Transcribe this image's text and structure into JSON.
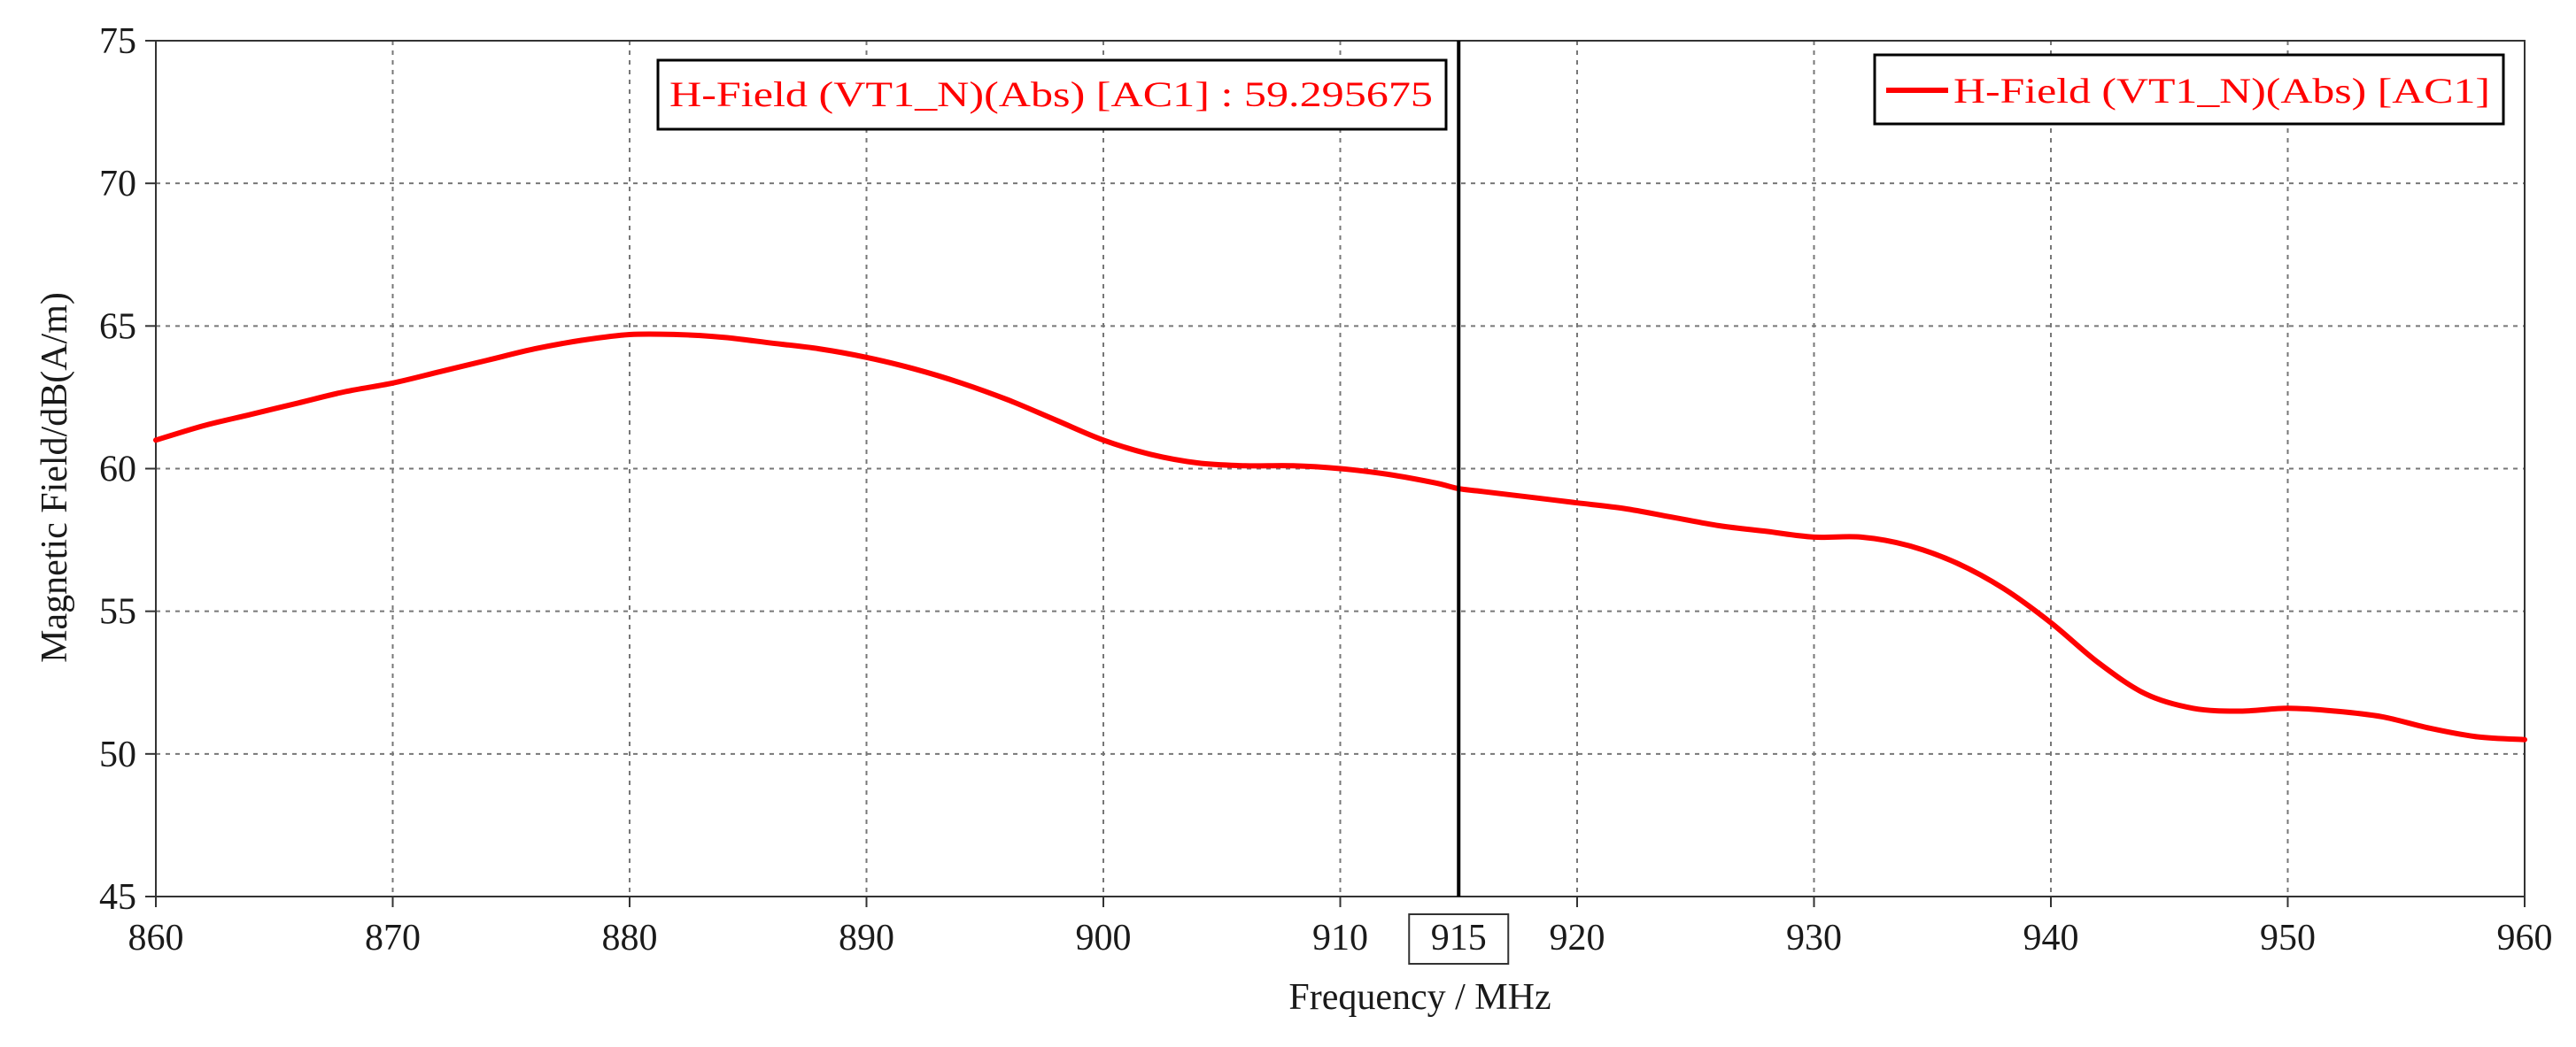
{
  "chart_data": {
    "type": "line",
    "title": "",
    "xlabel": "Frequency / MHz",
    "ylabel": "Magnetic Field/dB(A/m)",
    "xlim": [
      860,
      960
    ],
    "ylim": [
      45,
      75
    ],
    "xticks": [
      860,
      870,
      880,
      890,
      900,
      910,
      920,
      930,
      940,
      950,
      960
    ],
    "yticks": [
      45,
      50,
      55,
      60,
      65,
      70,
      75
    ],
    "grid": true,
    "legend_position": "top-right",
    "series": [
      {
        "name": "H-Field (VT1_N)(Abs) [AC1]",
        "color": "#ff0000",
        "x": [
          860,
          862,
          864,
          866,
          868,
          870,
          872,
          874,
          876,
          878,
          880,
          882,
          884,
          886,
          888,
          890,
          892,
          894,
          896,
          898,
          900,
          902,
          904,
          906,
          908,
          910,
          912,
          914,
          915,
          916,
          918,
          920,
          922,
          924,
          926,
          928,
          930,
          932,
          934,
          936,
          938,
          940,
          942,
          944,
          946,
          948,
          950,
          952,
          954,
          956,
          958,
          960
        ],
        "values": [
          61.0,
          61.5,
          61.9,
          62.3,
          62.7,
          63.0,
          63.4,
          63.8,
          64.2,
          64.5,
          64.7,
          64.7,
          64.6,
          64.4,
          64.2,
          63.9,
          63.5,
          63.0,
          62.4,
          61.7,
          61.0,
          60.5,
          60.2,
          60.1,
          60.1,
          60.0,
          59.8,
          59.5,
          59.3,
          59.2,
          59.0,
          58.8,
          58.6,
          58.3,
          58.0,
          57.8,
          57.6,
          57.6,
          57.3,
          56.7,
          55.8,
          54.6,
          53.2,
          52.1,
          51.6,
          51.5,
          51.6,
          51.5,
          51.3,
          50.9,
          50.6,
          50.5
        ]
      }
    ],
    "marker": {
      "x": 915,
      "label": "915",
      "readout": "H-Field (VT1_N)(Abs) [AC1] : 59.295675"
    }
  }
}
